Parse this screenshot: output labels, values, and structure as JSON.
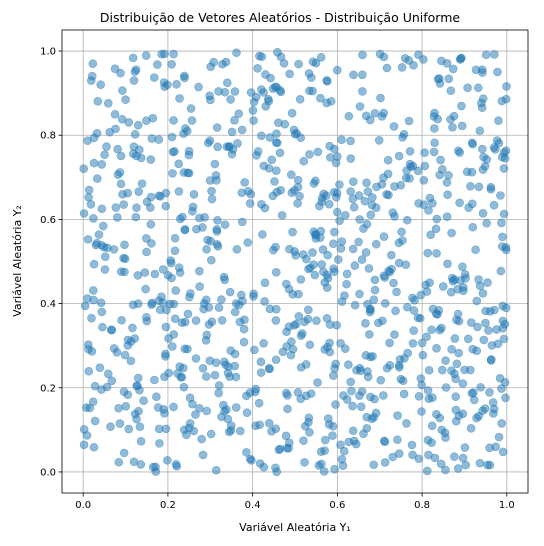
{
  "chart_data": {
    "type": "scatter",
    "title": "Distribuição de Vetores Aleatórios - Distribuição Uniforme",
    "xlabel": "Variável Aleatória Y₁",
    "ylabel": "Variável Aleatória Y₂",
    "xlim": [
      -0.05,
      1.05
    ],
    "ylim": [
      -0.05,
      1.05
    ],
    "xticks": [
      0.0,
      0.2,
      0.4,
      0.6,
      0.8,
      1.0
    ],
    "yticks": [
      0.0,
      0.2,
      0.4,
      0.6,
      0.8,
      1.0
    ],
    "xtick_labels": [
      "0.0",
      "0.2",
      "0.4",
      "0.6",
      "0.8",
      "1.0"
    ],
    "ytick_labels": [
      "0.0",
      "0.2",
      "0.4",
      "0.6",
      "0.8",
      "1.0"
    ],
    "grid": true,
    "point_color": "#1f77b4",
    "point_alpha": 0.5,
    "distribution": "uniform",
    "n_points": 1000,
    "x_range": [
      0,
      1
    ],
    "y_range": [
      0,
      1
    ]
  }
}
